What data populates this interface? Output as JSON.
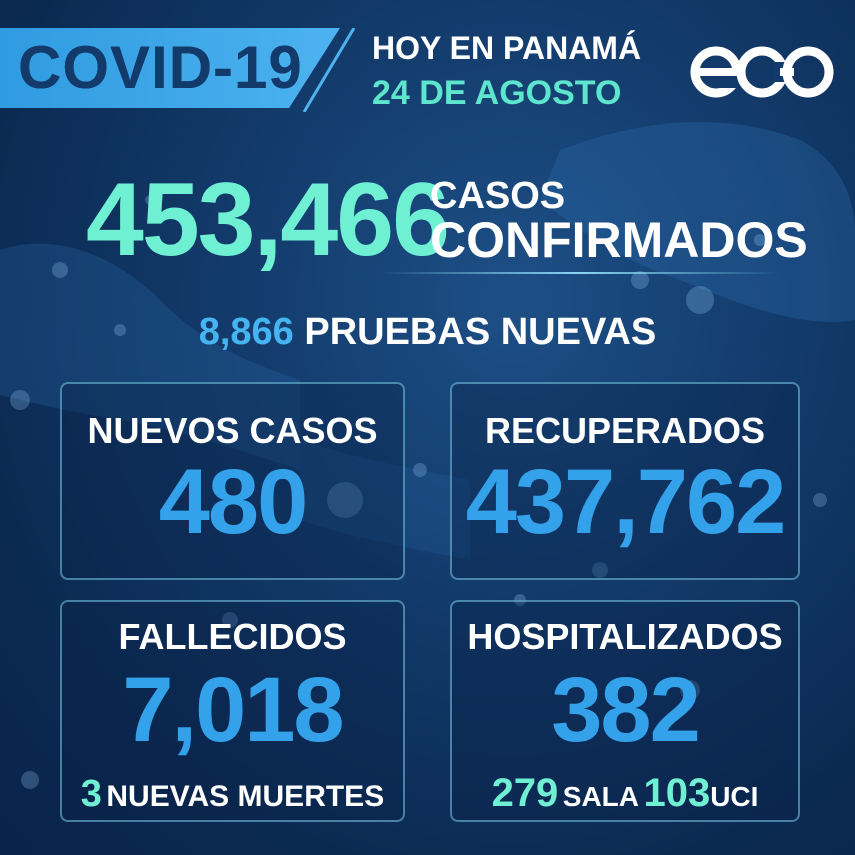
{
  "header": {
    "banner_title": "COVID-19",
    "subtitle_line1": "HOY EN PANAMÁ",
    "date": "24 DE AGOSTO",
    "logo": "eco-logo"
  },
  "confirmed": {
    "value": "453,466",
    "label_line1": "CASOS",
    "label_line2": "CONFIRMADOS"
  },
  "tests": {
    "value": "8,866",
    "label": "PRUEBAS NUEVAS"
  },
  "cards": {
    "new_cases": {
      "label": "NUEVOS CASOS",
      "value": "480"
    },
    "recovered": {
      "label": "RECUPERADOS",
      "value": "437,762"
    },
    "deaths": {
      "label": "FALLECIDOS",
      "value": "7,018",
      "new_value": "3",
      "new_label": "NUEVAS MUERTES"
    },
    "hospitalized": {
      "label": "HOSPITALIZADOS",
      "value": "382",
      "ward_value": "279",
      "ward_label": "SALA",
      "icu_value": "103",
      "icu_label": "UCI"
    }
  },
  "colors": {
    "background": "#0b2a52",
    "banner": "#3aa8e8",
    "accent_mint": "#6ff0d3",
    "value_blue": "#33a2ea"
  }
}
